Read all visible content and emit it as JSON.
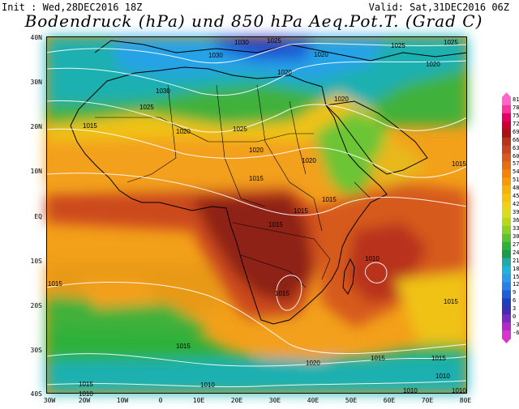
{
  "header": {
    "init": "Init : Wed,28DEC2016 18Z",
    "valid": "Valid: Sat,31DEC2016 06Z",
    "title": "Bodendruck (hPa) und 850 hPa Aeq.Pot.T. (Grad C)"
  },
  "axes": {
    "lat_labels": [
      "40N",
      "30N",
      "20N",
      "10N",
      "EQ",
      "10S",
      "20S",
      "30S",
      "40S"
    ],
    "lon_labels": [
      "30W",
      "20W",
      "10W",
      "0",
      "10E",
      "20E",
      "30E",
      "40E",
      "50E",
      "60E",
      "70E",
      "80E"
    ]
  },
  "colorbar": {
    "labels": [
      "81",
      "78",
      "75",
      "72",
      "69",
      "66",
      "63",
      "60",
      "57",
      "54",
      "51",
      "48",
      "45",
      "42",
      "39",
      "36",
      "33",
      "30",
      "27",
      "24",
      "21",
      "18",
      "15",
      "12",
      "9",
      "6",
      "3",
      "0",
      "-3",
      "-6"
    ],
    "colors": [
      "#ff66cc",
      "#ff3399",
      "#e60066",
      "#cc0033",
      "#aa1111",
      "#b8331a",
      "#c9441f",
      "#d95a1f",
      "#e86e14",
      "#f2840c",
      "#f79a0a",
      "#f7b20a",
      "#f5c20c",
      "#efd01a",
      "#dcdc1e",
      "#b8d81e",
      "#8ccf28",
      "#5cc232",
      "#2fb13a",
      "#1c9c48",
      "#22a9a9",
      "#1fb6d6",
      "#2c9ae8",
      "#2a7fe8",
      "#1e5fd8",
      "#1f3fc0",
      "#3f2fb0",
      "#7a2ac0",
      "#b02ac8",
      "#d836c8"
    ]
  },
  "isobars": [
    "1030",
    "1025",
    "1025",
    "1025",
    "1030",
    "1020",
    "1020",
    "1020",
    "1030",
    "1025",
    "1020",
    "1020",
    "1015",
    "1025",
    "1020",
    "1015",
    "1020",
    "1015",
    "1015",
    "1015",
    "1015",
    "1015",
    "1010",
    "1015",
    "1015",
    "1015",
    "1020",
    "1015",
    "1015",
    "1015",
    "1010",
    "1010",
    "1010",
    "1010",
    "1010"
  ],
  "colors": {
    "ocean_low": "#f5a01a",
    "land_hot": "#8e2418",
    "sahara_cold": "#2a8fd9",
    "isobar": "#ffffff"
  }
}
